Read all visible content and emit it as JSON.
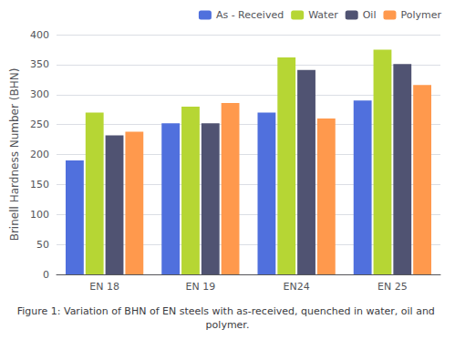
{
  "chart_data": {
    "type": "bar",
    "categories": [
      "EN 18",
      "EN 19",
      "EN24",
      "EN 25"
    ],
    "series": [
      {
        "name": "As - Received",
        "values": [
          190,
          252,
          270,
          290
        ]
      },
      {
        "name": "Water",
        "values": [
          270,
          280,
          362,
          375
        ]
      },
      {
        "name": "Oil",
        "values": [
          232,
          252,
          341,
          351
        ]
      },
      {
        "name": "Polymer",
        "values": [
          238,
          286,
          260,
          316
        ]
      }
    ],
    "ylabel": "Brinell Hardness Number (BHN)",
    "ylim": [
      0,
      400
    ],
    "yticks": [
      0,
      50,
      100,
      150,
      200,
      250,
      300,
      350,
      400
    ],
    "grid": true,
    "legend": "upper right",
    "annotations": [
      "Figure 1: Variation of BHN of EN steels with as-received, quenched in water, oil and polymer."
    ]
  }
}
